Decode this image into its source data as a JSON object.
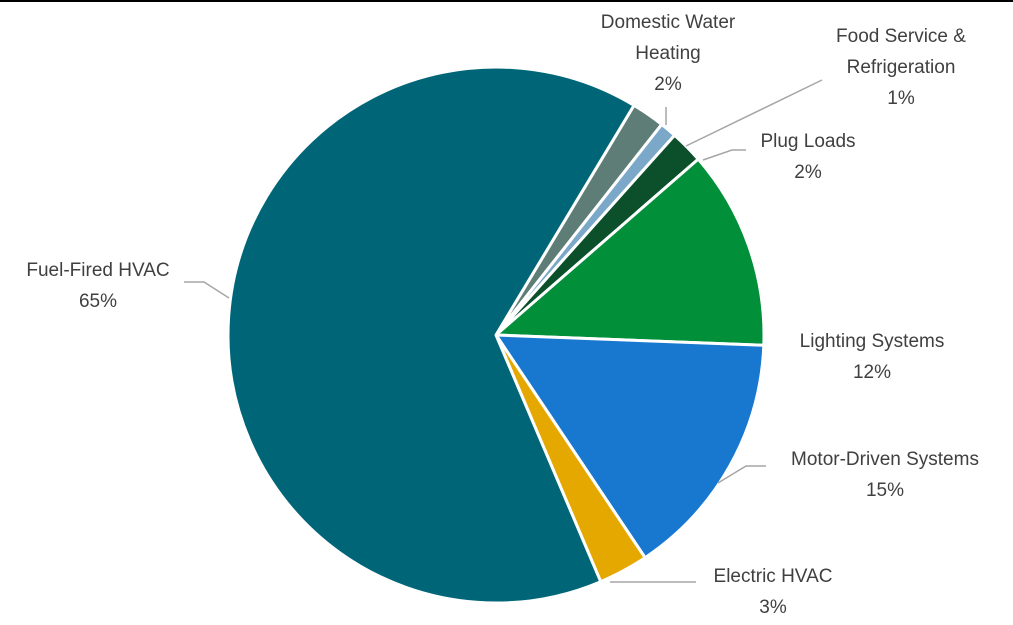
{
  "chart_data": {
    "type": "pie",
    "title": "",
    "start_angle_deg": 149,
    "direction": "clockwise",
    "slices": [
      {
        "label_lines": [
          "Domestic Water",
          "Heating"
        ],
        "value": 2,
        "value_label": "2%",
        "color": "#5F7D77"
      },
      {
        "label_lines": [
          "Food Service &",
          "Refrigeration"
        ],
        "value": 1,
        "value_label": "1%",
        "color": "#7BA7C9"
      },
      {
        "label_lines": [
          "Plug Loads"
        ],
        "value": 2,
        "value_label": "2%",
        "color": "#0B4F2B"
      },
      {
        "label_lines": [
          "Lighting Systems"
        ],
        "value": 12,
        "value_label": "12%",
        "color": "#028F3A"
      },
      {
        "label_lines": [
          "Motor-Driven Systems"
        ],
        "value": 15,
        "value_label": "15%",
        "color": "#1878D0"
      },
      {
        "label_lines": [
          "Electric HVAC"
        ],
        "value": 3,
        "value_label": "3%",
        "color": "#E5A800"
      },
      {
        "label_lines": [
          "Fuel-Fired HVAC"
        ],
        "value": 65,
        "value_label": "65%",
        "color": "#006677"
      }
    ],
    "legend": "none"
  }
}
